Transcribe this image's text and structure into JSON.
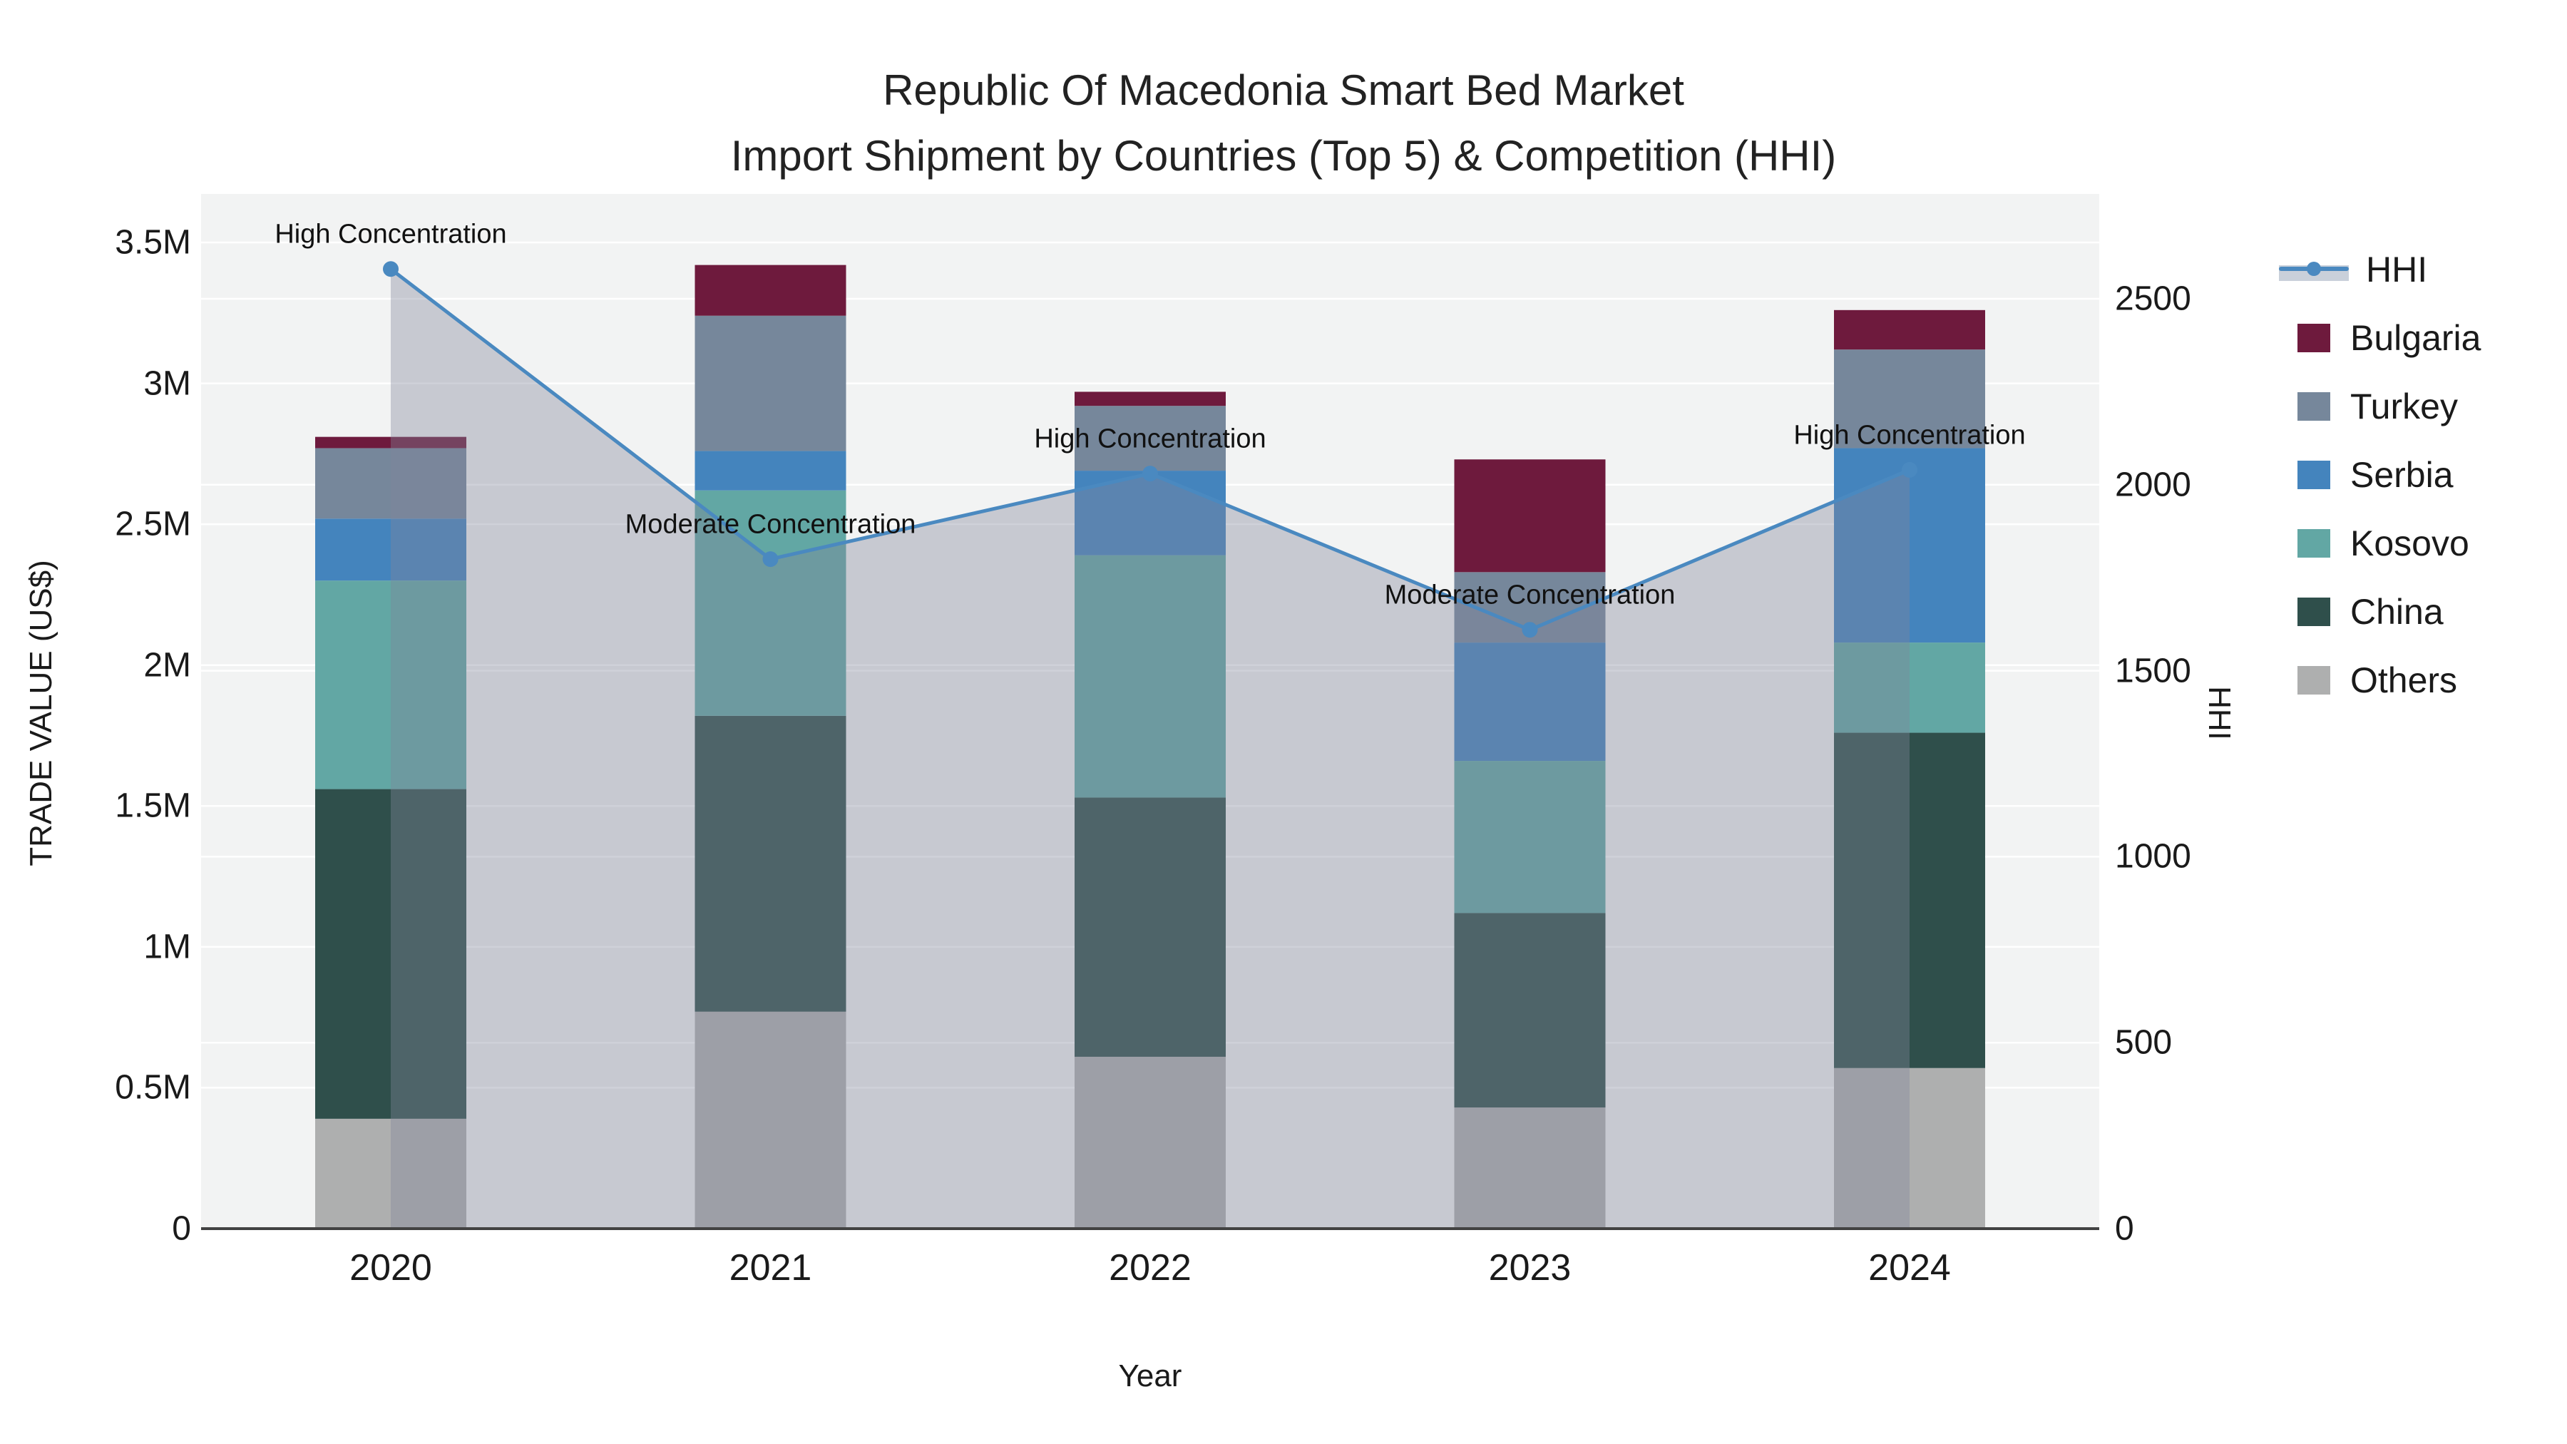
{
  "title": {
    "line1": "Republic Of Macedonia Smart Bed Market",
    "line2": "Import Shipment by Countries (Top 5) & Competition (HHI)"
  },
  "axes": {
    "y_left_title": "TRADE VALUE (US$)",
    "y_right_title": "HHI",
    "x_title": "Year",
    "y_left_ticks": [
      "0",
      "0.5M",
      "1M",
      "1.5M",
      "2M",
      "2.5M",
      "3M",
      "3.5M"
    ],
    "y_right_ticks": [
      "0",
      "500",
      "1000",
      "1500",
      "2000",
      "2500"
    ],
    "x_ticks": [
      "2020",
      "2021",
      "2022",
      "2023",
      "2024"
    ]
  },
  "legend": {
    "items": [
      {
        "label": "HHI",
        "type": "line"
      },
      {
        "label": "Bulgaria",
        "type": "swatch"
      },
      {
        "label": "Turkey",
        "type": "swatch"
      },
      {
        "label": "Serbia",
        "type": "swatch"
      },
      {
        "label": "Kosovo",
        "type": "swatch"
      },
      {
        "label": "China",
        "type": "swatch"
      },
      {
        "label": "Others",
        "type": "swatch"
      }
    ]
  },
  "colors": {
    "bulgaria": "#6e1a3d",
    "turkey": "#76879b",
    "serbia": "#4484bd",
    "kosovo": "#62a7a4",
    "china": "#2f4f4b",
    "others": "#aeafaf",
    "hhi_line": "#4a89c0",
    "hhi_area": "rgba(128,134,154,0.38)",
    "plot_bg": "#f2f3f3",
    "grid": "#ffffff",
    "axis_line": "#424242"
  },
  "chart_data": {
    "type": "bar",
    "subtype": "stacked-bars-with-line",
    "title": "Republic Of Macedonia Smart Bed Market — Import Shipment by Countries (Top 5) & Competition (HHI)",
    "xlabel": "Year",
    "ylabel": "TRADE VALUE (US$)",
    "y2label": "HHI",
    "categories": [
      2020,
      2021,
      2022,
      2023,
      2024
    ],
    "values_unit": "million US$",
    "ylim": [
      0,
      3.5
    ],
    "y2lim": [
      0,
      2500
    ],
    "grid": true,
    "legend_position": "right",
    "series": [
      {
        "name": "Others",
        "stack_order": 1,
        "values": [
          0.39,
          0.77,
          0.61,
          0.43,
          0.57
        ]
      },
      {
        "name": "China",
        "stack_order": 2,
        "values": [
          1.17,
          1.05,
          0.92,
          0.69,
          1.19
        ]
      },
      {
        "name": "Kosovo",
        "stack_order": 3,
        "values": [
          0.74,
          0.8,
          0.86,
          0.54,
          0.32
        ]
      },
      {
        "name": "Serbia",
        "stack_order": 4,
        "values": [
          0.22,
          0.14,
          0.3,
          0.42,
          0.69
        ]
      },
      {
        "name": "Turkey",
        "stack_order": 5,
        "values": [
          0.25,
          0.48,
          0.23,
          0.25,
          0.35
        ]
      },
      {
        "name": "Bulgaria",
        "stack_order": 6,
        "values": [
          0.04,
          0.18,
          0.05,
          0.4,
          0.14
        ]
      }
    ],
    "bar_totals": [
      2.81,
      3.42,
      2.97,
      2.73,
      3.26
    ],
    "line_series": {
      "name": "HHI",
      "axis": "right",
      "area_fill": true,
      "values": [
        2580,
        1800,
        2030,
        1610,
        2040
      ]
    },
    "annotations": [
      {
        "x": 2020,
        "text": "High Concentration"
      },
      {
        "x": 2021,
        "text": "Moderate Concentration"
      },
      {
        "x": 2022,
        "text": "High Concentration"
      },
      {
        "x": 2023,
        "text": "Moderate Concentration"
      },
      {
        "x": 2024,
        "text": "High Concentration"
      }
    ]
  }
}
